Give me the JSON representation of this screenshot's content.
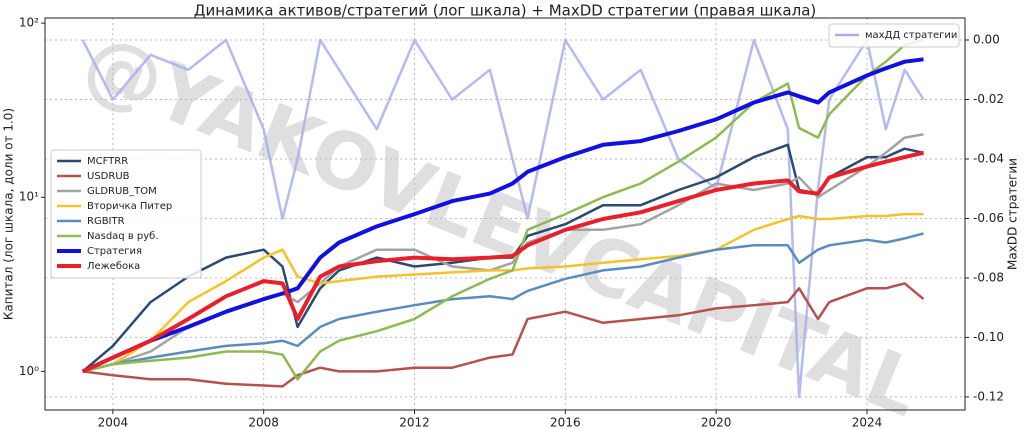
{
  "chart_data": {
    "type": "line",
    "title": "Динамика активов/стратегий (лог шкала) + MaxDD стратегии (правая шкала)",
    "ylabel": "Капитал (лог шкала, доли от 1.0)",
    "y2label": "MaxDD стратегии",
    "watermark": "@YAKOVLEVCAPITAL",
    "log_y": true,
    "grid": true,
    "legend_loc": "center left",
    "legend2_loc": "upper right",
    "xlim": [
      2002.2,
      2026.6
    ],
    "xticks": [
      2004,
      2008,
      2012,
      2016,
      2020,
      2024
    ],
    "ylim": [
      0.6,
      107
    ],
    "yticks": [
      {
        "value": 1,
        "label": "10⁰"
      },
      {
        "value": 10,
        "label": "10¹"
      },
      {
        "value": 100,
        "label": "10²"
      }
    ],
    "y2lim": [
      -0.1244,
      0.0074
    ],
    "y2ticks": [
      {
        "value": 0,
        "label": "0.00"
      },
      {
        "value": -0.02,
        "label": "-0.02"
      },
      {
        "value": -0.04,
        "label": "-0.04"
      },
      {
        "value": -0.06,
        "label": "-0.06"
      },
      {
        "value": -0.08,
        "label": "-0.08"
      },
      {
        "value": -0.1,
        "label": "-0.10"
      },
      {
        "value": -0.12,
        "label": "-0.12"
      }
    ],
    "x": [
      2003.2,
      2004,
      2005,
      2006,
      2007,
      2008,
      2008.5,
      2008.9,
      2009.5,
      2010,
      2011,
      2012,
      2013,
      2014,
      2014.6,
      2015,
      2016,
      2017,
      2018,
      2019,
      2020,
      2021,
      2021.9,
      2022.2,
      2022.7,
      2023,
      2024,
      2024.5,
      2025,
      2025.5
    ],
    "series": [
      {
        "name": "MCFTRR",
        "color": "#2b4a6f",
        "linewidth": 2.5,
        "values": [
          1.0,
          1.4,
          2.5,
          3.5,
          4.5,
          5,
          4,
          1.8,
          3,
          3.8,
          4.5,
          4,
          4.2,
          4.5,
          4.5,
          6,
          7,
          9,
          9,
          11,
          13,
          17,
          20,
          11,
          10.5,
          13,
          17,
          17,
          19,
          18
        ]
      },
      {
        "name": "USDRUB",
        "color": "#b5524f",
        "linewidth": 2.5,
        "values": [
          1.0,
          0.95,
          0.9,
          0.9,
          0.85,
          0.83,
          0.82,
          0.95,
          1.05,
          1.0,
          1.0,
          1.05,
          1.05,
          1.2,
          1.25,
          2.0,
          2.2,
          1.9,
          2.0,
          2.1,
          2.3,
          2.4,
          2.5,
          3.0,
          2.0,
          2.5,
          3.0,
          3.0,
          3.2,
          2.6
        ]
      },
      {
        "name": "GLDRUB_TOM",
        "color": "#a3a3a3",
        "linewidth": 2.5,
        "values": [
          1.0,
          1.1,
          1.3,
          1.8,
          2.2,
          2.6,
          2.8,
          2.5,
          3.2,
          4,
          5,
          5,
          4,
          3.8,
          4.2,
          5.5,
          6.5,
          6.5,
          7,
          9,
          12,
          11,
          12,
          13,
          10,
          11,
          15,
          18,
          22,
          23
        ]
      },
      {
        "name": "Вторичка Питер",
        "color": "#f5c22a",
        "linewidth": 2.5,
        "values": [
          1.0,
          1.1,
          1.5,
          2.5,
          3.3,
          4.5,
          5.0,
          3.5,
          3.2,
          3.3,
          3.5,
          3.6,
          3.7,
          3.8,
          3.8,
          3.9,
          4.0,
          4.2,
          4.4,
          4.6,
          5.0,
          6.5,
          7.5,
          7.8,
          7.5,
          7.5,
          7.8,
          7.8,
          8.0,
          8.0
        ]
      },
      {
        "name": "RGBITR",
        "color": "#5b8cc0",
        "linewidth": 2.5,
        "values": [
          1.0,
          1.1,
          1.2,
          1.3,
          1.4,
          1.45,
          1.5,
          1.4,
          1.8,
          2.0,
          2.2,
          2.4,
          2.6,
          2.7,
          2.6,
          2.9,
          3.4,
          3.8,
          4.0,
          4.5,
          5.0,
          5.3,
          5.3,
          4.2,
          5.0,
          5.3,
          5.7,
          5.5,
          5.8,
          6.2
        ]
      },
      {
        "name": "Nasdaq в руб.",
        "color": "#8fba52",
        "linewidth": 2.5,
        "values": [
          1.0,
          1.1,
          1.15,
          1.2,
          1.3,
          1.3,
          1.25,
          0.9,
          1.3,
          1.5,
          1.7,
          2.0,
          2.7,
          3.4,
          3.8,
          6.5,
          8,
          10,
          12,
          16,
          22,
          35,
          45,
          25,
          22,
          30,
          50,
          60,
          75,
          80
        ]
      },
      {
        "name": "Стратегия",
        "color": "#1010e0",
        "linewidth": 4,
        "values": [
          1.0,
          1.2,
          1.5,
          1.8,
          2.2,
          2.6,
          2.8,
          3.0,
          4.5,
          5.5,
          6.8,
          8,
          9.5,
          10.5,
          12,
          14,
          17,
          20,
          21,
          24,
          28,
          35,
          40,
          38,
          35,
          40,
          50,
          55,
          60,
          62
        ]
      },
      {
        "name": "Лежебока",
        "color": "#e8202a",
        "linewidth": 4,
        "values": [
          1.0,
          1.2,
          1.5,
          2.0,
          2.7,
          3.3,
          3.2,
          2.0,
          3.5,
          4.0,
          4.3,
          4.5,
          4.4,
          4.5,
          4.6,
          5.3,
          6.5,
          7.5,
          8.2,
          9.5,
          11,
          12,
          12.5,
          10.8,
          10.5,
          13,
          15,
          16,
          17,
          18
        ]
      },
      {
        "name": "махДД стратегии",
        "color": "#a8aef0",
        "linewidth": 2.5,
        "axis": "y2",
        "values": [
          0,
          -0.02,
          -0.005,
          -0.01,
          0,
          -0.03,
          -0.06,
          -0.04,
          0,
          -0.01,
          -0.03,
          0,
          -0.02,
          -0.01,
          -0.04,
          -0.06,
          0,
          -0.02,
          -0.01,
          -0.04,
          -0.05,
          0,
          -0.03,
          -0.12,
          -0.05,
          -0.02,
          0,
          -0.03,
          -0.01,
          -0.02
        ]
      }
    ]
  }
}
